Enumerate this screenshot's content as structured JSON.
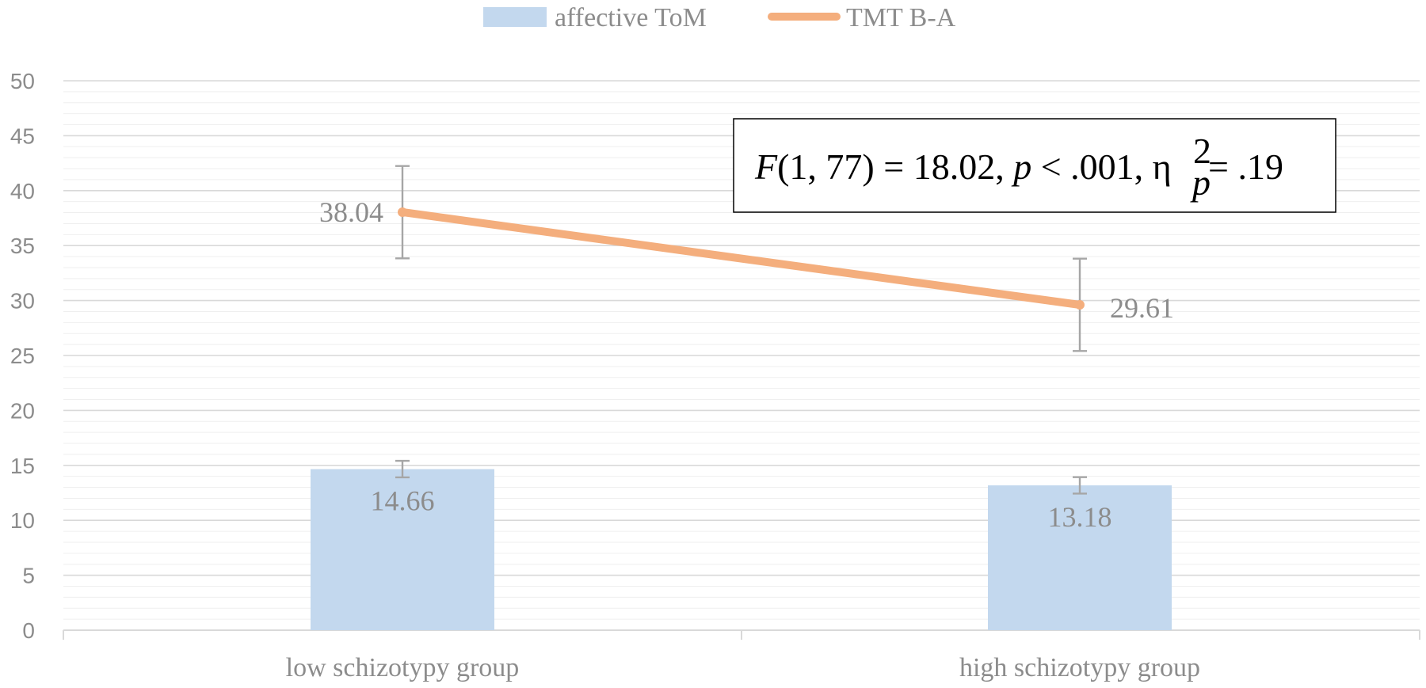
{
  "chart_data": {
    "type": "bar",
    "categories": [
      "low schizotypy group",
      "high schizotypy group"
    ],
    "series": [
      {
        "name": "affective ToM",
        "kind": "bar",
        "values": [
          14.66,
          13.18
        ],
        "value_labels": [
          "14.66",
          "13.18"
        ],
        "error": [
          0.75,
          0.75
        ],
        "color": "#c3d8ee"
      },
      {
        "name": "TMT B-A",
        "kind": "line",
        "values": [
          38.04,
          29.61
        ],
        "value_labels": [
          "38.04",
          "29.61"
        ],
        "error": [
          4.2,
          4.2
        ],
        "color": "#f4ae7d"
      }
    ],
    "ylim": [
      0,
      50
    ],
    "yticks": [
      "0",
      "5",
      "10",
      "15",
      "20",
      "25",
      "30",
      "35",
      "40",
      "45",
      "50"
    ],
    "grid": true,
    "legend_position": "top",
    "annotation": {
      "F": "F",
      "df": "(1, 77) = 18.02, ",
      "p": "p",
      "p_rest": " < .001, η",
      "sup": "2",
      "sub": "p",
      "end": " = .19"
    }
  },
  "colors": {
    "grid": "#d9d9d9",
    "minor_grid": "#efefef",
    "axis": "#d9d9d9",
    "error_bar": "#a6a6a6",
    "text": "#8c8c8c"
  }
}
